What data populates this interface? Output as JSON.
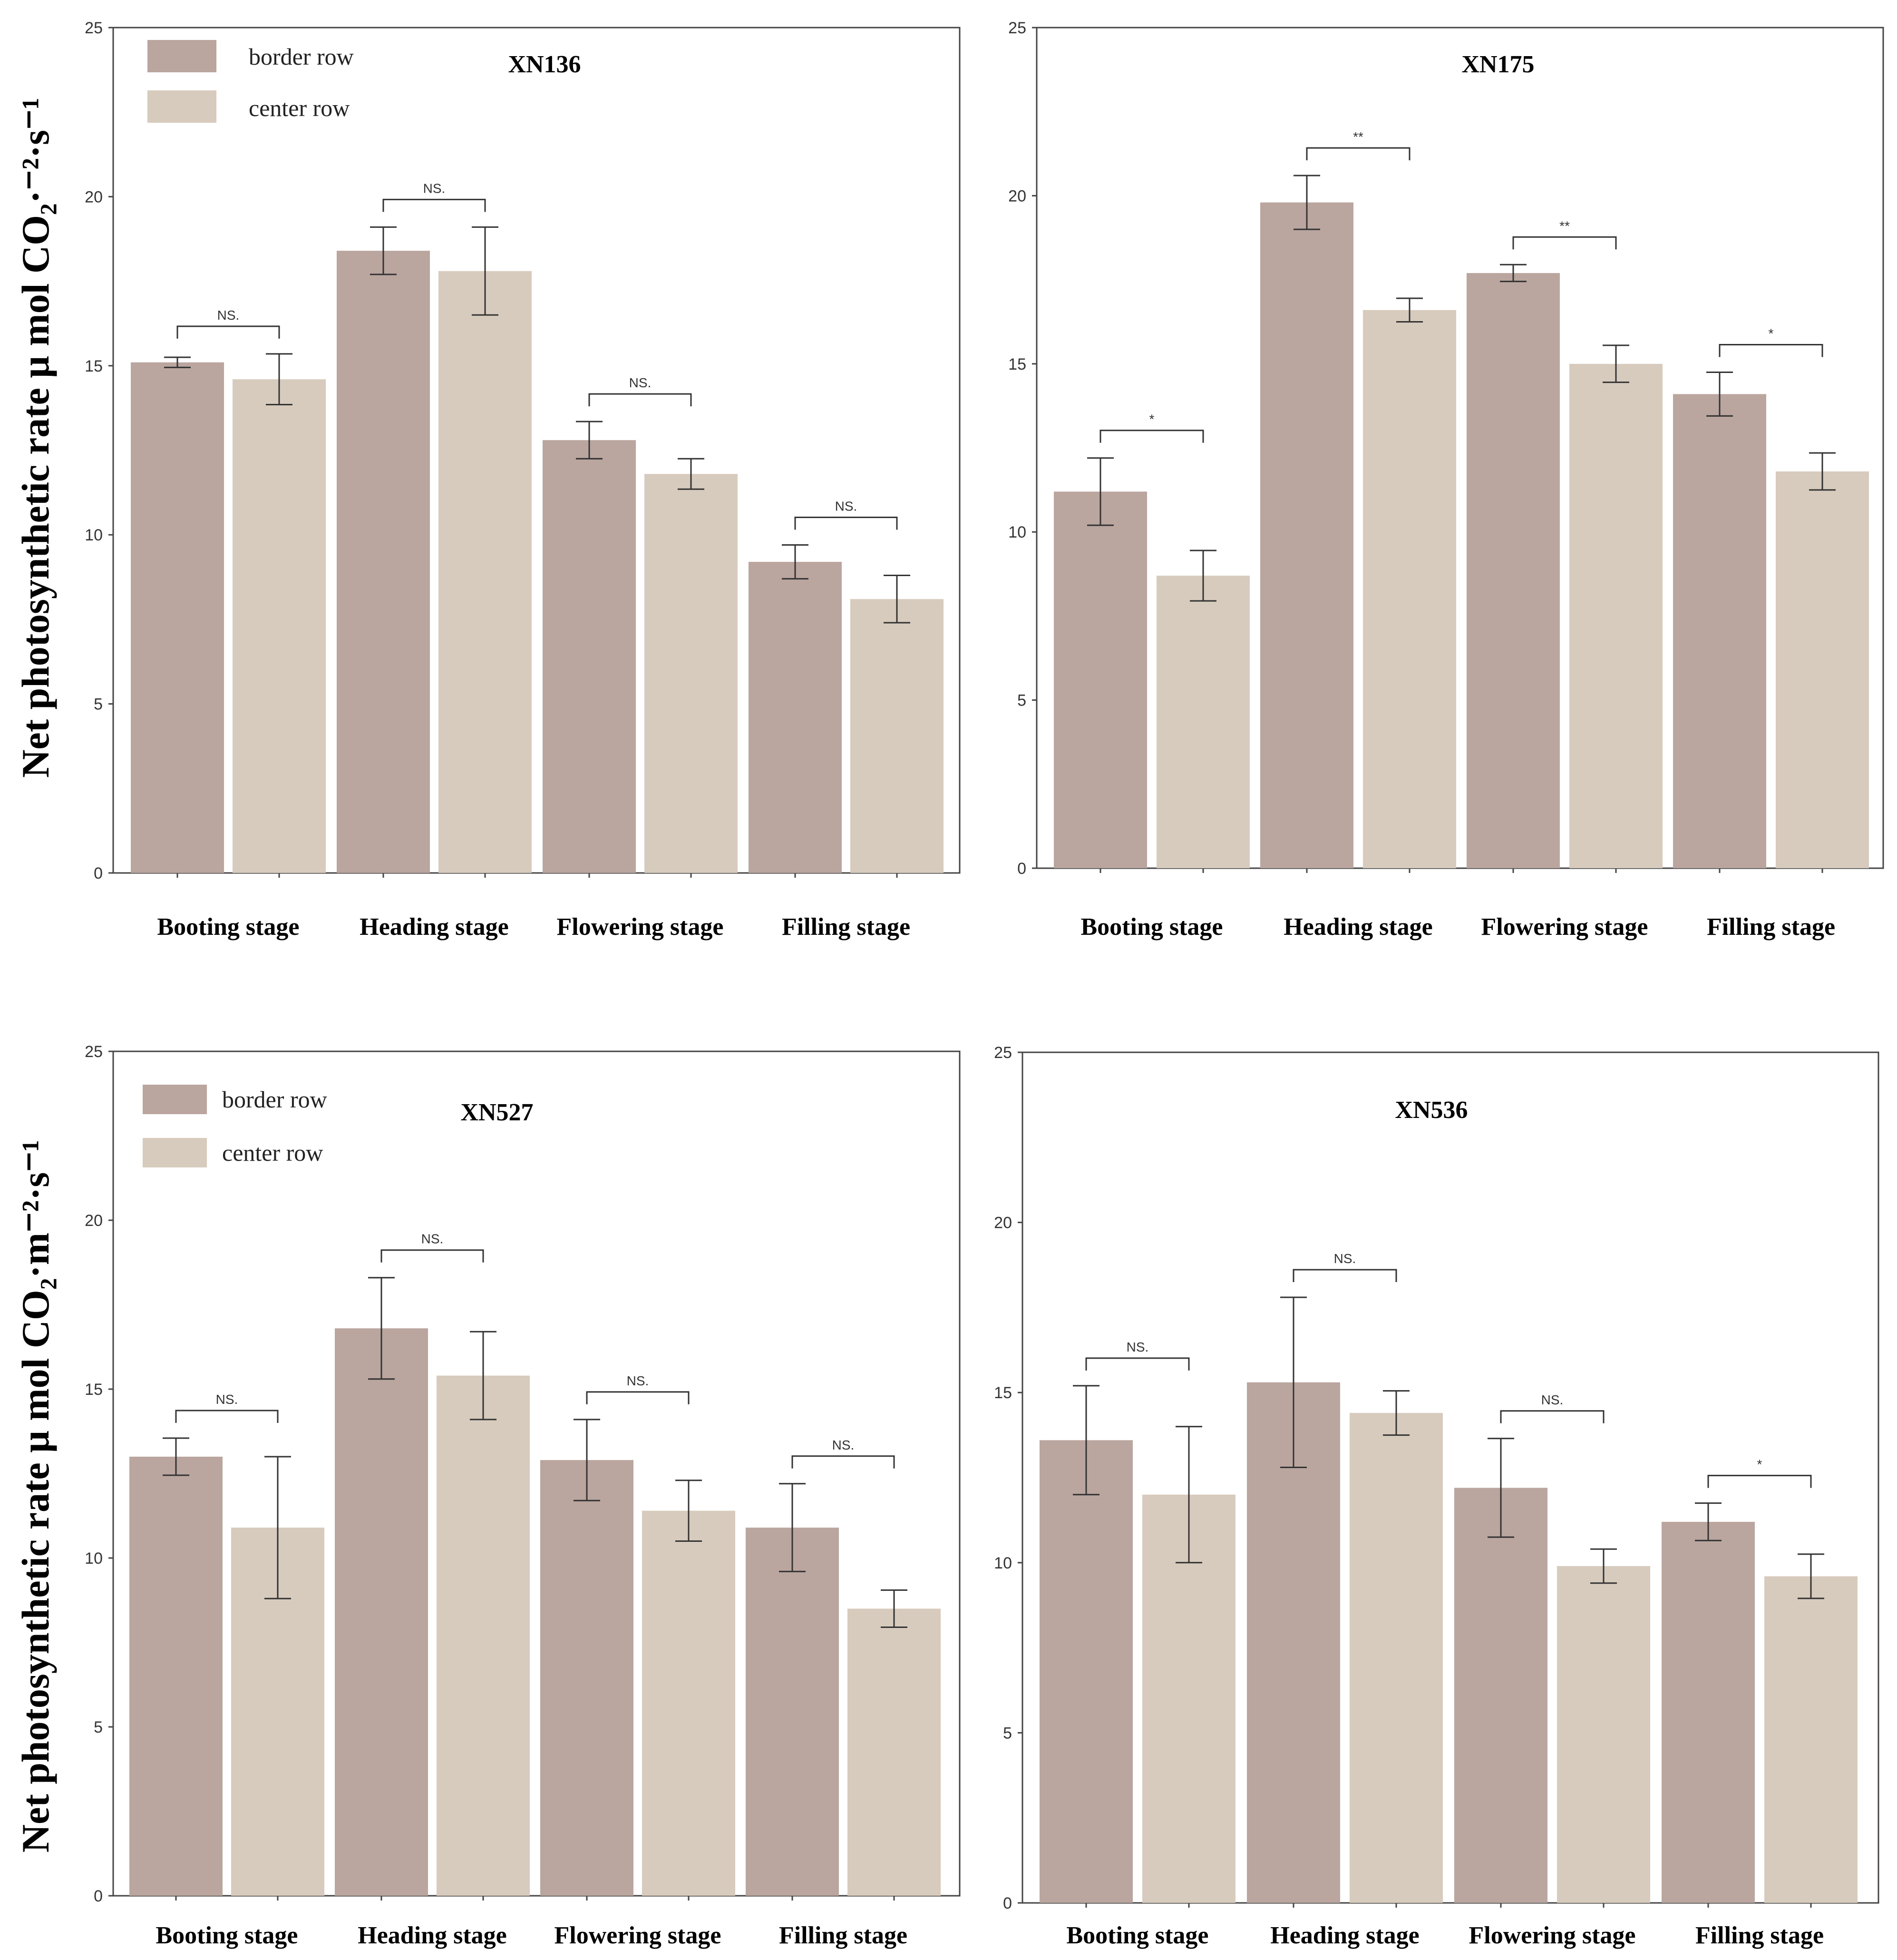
{
  "colors": {
    "border_row": "#bba59f",
    "center_row": "#d7cbbd"
  },
  "chart_data": [
    {
      "type": "bar",
      "title": "XN136",
      "categories": [
        "Booting stage",
        "Heading stage",
        "Flowering stage",
        "Filling stage"
      ],
      "ylim": [
        0,
        25
      ],
      "yticks": [
        0,
        5,
        10,
        15,
        20,
        25
      ],
      "ylabel": "Net photosynthetic rate μ mol CO₂·⁻²·s⁻¹",
      "show_legend": true,
      "legend": [
        "border row",
        "center row"
      ],
      "series": [
        {
          "name": "border row",
          "values": [
            15.1,
            18.4,
            12.8,
            9.2
          ],
          "errors": [
            0.15,
            0.7,
            0.55,
            0.5
          ]
        },
        {
          "name": "center row",
          "values": [
            14.6,
            17.8,
            11.8,
            8.1
          ],
          "errors": [
            0.75,
            1.3,
            0.45,
            0.7
          ]
        }
      ],
      "significance": [
        "NS.",
        "NS.",
        "NS.",
        "NS."
      ]
    },
    {
      "type": "bar",
      "title": "XN175",
      "categories": [
        "Booting stage",
        "Heading stage",
        "Flowering stage",
        "Filling stage"
      ],
      "ylim": [
        0,
        25
      ],
      "yticks": [
        0,
        5,
        10,
        15,
        20,
        25
      ],
      "ylabel": "",
      "show_legend": false,
      "legend": [],
      "series": [
        {
          "name": "border row",
          "values": [
            11.2,
            19.8,
            17.7,
            14.1
          ],
          "errors": [
            1.0,
            0.8,
            0.25,
            0.65
          ]
        },
        {
          "name": "center row",
          "values": [
            8.7,
            16.6,
            15.0,
            11.8
          ],
          "errors": [
            0.75,
            0.35,
            0.55,
            0.55
          ]
        }
      ],
      "significance": [
        "*",
        "**",
        "**",
        "*"
      ]
    },
    {
      "type": "bar",
      "title": "XN527",
      "categories": [
        "Booting stage",
        "Heading stage",
        "Flowering stage",
        "Filling stage"
      ],
      "ylim": [
        0,
        25
      ],
      "yticks": [
        0,
        5,
        10,
        15,
        20,
        25
      ],
      "ylabel": "Net photosynthetic rate μ mol CO₂·m⁻²·s⁻¹",
      "show_legend": true,
      "legend": [
        "border row",
        "center row"
      ],
      "series": [
        {
          "name": "border row",
          "values": [
            13.0,
            16.8,
            12.9,
            10.9
          ],
          "errors": [
            0.55,
            1.5,
            1.2,
            1.3
          ]
        },
        {
          "name": "center row",
          "values": [
            10.9,
            15.4,
            11.4,
            8.5
          ],
          "errors": [
            2.1,
            1.3,
            0.9,
            0.55
          ]
        }
      ],
      "significance": [
        "NS.",
        "NS.",
        "NS.",
        "NS."
      ]
    },
    {
      "type": "bar",
      "title": "XN536",
      "categories": [
        "Booting stage",
        "Heading stage",
        "Flowering stage",
        "Filling stage"
      ],
      "ylim": [
        0,
        25
      ],
      "yticks": [
        0,
        5,
        10,
        15,
        20,
        25
      ],
      "ylabel": "",
      "show_legend": false,
      "legend": [],
      "series": [
        {
          "name": "border row",
          "values": [
            13.6,
            15.3,
            12.2,
            11.2
          ],
          "errors": [
            1.6,
            2.5,
            1.45,
            0.55
          ]
        },
        {
          "name": "center row",
          "values": [
            12.0,
            14.4,
            9.9,
            9.6
          ],
          "errors": [
            2.0,
            0.65,
            0.5,
            0.65
          ]
        }
      ],
      "significance": [
        "NS.",
        "NS.",
        "NS.",
        "*"
      ]
    }
  ]
}
